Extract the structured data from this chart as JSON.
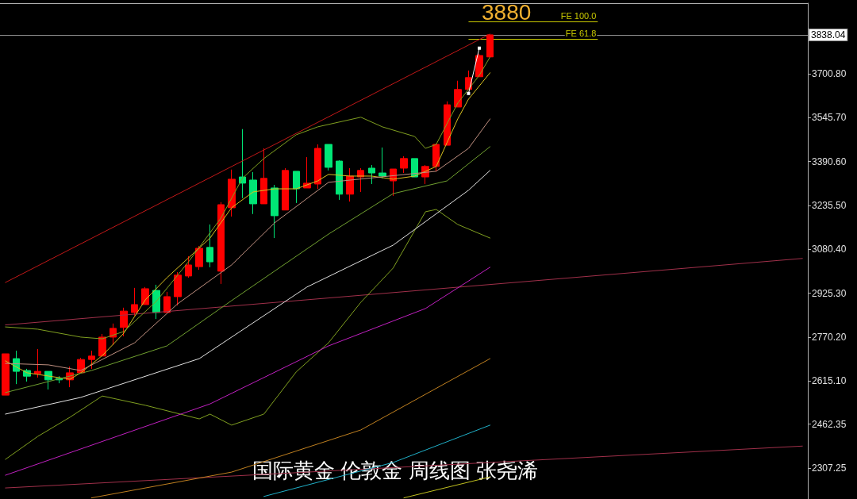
{
  "chart_data": {
    "type": "candlestick",
    "title": "国际黄金 伦敦金 周线图 张尧浠",
    "annotations": [
      "3880"
    ],
    "categories": [
      null,
      null,
      null,
      null,
      null,
      null,
      null,
      null,
      null,
      null,
      null,
      null,
      null,
      null,
      null,
      null,
      null,
      null,
      null,
      null,
      null,
      null,
      null,
      null,
      null,
      null,
      null,
      null,
      null,
      null,
      null,
      null,
      null,
      null,
      null,
      null,
      null,
      null,
      null,
      null,
      null,
      null,
      null,
      null,
      null,
      null,
      null,
      null,
      null,
      null,
      null,
      null,
      null,
      null,
      null,
      null,
      null,
      null,
      null,
      null,
      null,
      null,
      null,
      null,
      null,
      null,
      null,
      null,
      null,
      null,
      null,
      null,
      null,
      null,
      null
    ],
    "ohlc": [
      [
        2565,
        2711,
        2565,
        2711
      ],
      [
        2694,
        2722,
        2604,
        2649
      ],
      [
        2652,
        2658,
        2613,
        2632
      ],
      [
        2641,
        2728,
        2627,
        2649
      ],
      [
        2649,
        2649,
        2585,
        2619
      ],
      [
        2624,
        2632,
        2607,
        2619
      ],
      [
        2619,
        2666,
        2593,
        2644
      ],
      [
        2644,
        2697,
        2644,
        2691
      ],
      [
        2691,
        2722,
        2658,
        2703
      ],
      [
        2703,
        2781,
        2703,
        2770
      ],
      [
        2770,
        2818,
        2742,
        2801
      ],
      [
        2804,
        2874,
        2773,
        2862
      ],
      [
        2857,
        2944,
        2846,
        2885
      ],
      [
        2885,
        2947,
        2885,
        2941
      ],
      [
        2935,
        2955,
        2834,
        2857
      ],
      [
        2857,
        2930,
        2857,
        2913
      ],
      [
        2913,
        3000,
        2882,
        2989
      ],
      [
        2986,
        3056,
        2980,
        3025
      ],
      [
        3019,
        3092,
        3008,
        3084
      ],
      [
        3087,
        3168,
        3017,
        3036
      ],
      [
        3003,
        3247,
        2958,
        3238
      ],
      [
        3227,
        3362,
        3196,
        3328
      ],
      [
        3336,
        3505,
        3261,
        3314
      ],
      [
        3325,
        3353,
        3205,
        3241
      ],
      [
        3241,
        3437,
        3241,
        3331
      ],
      [
        3297,
        3308,
        3120,
        3199
      ],
      [
        3219,
        3367,
        3219,
        3359
      ],
      [
        3356,
        3356,
        3244,
        3294
      ],
      [
        3297,
        3406,
        3297,
        3314
      ],
      [
        3311,
        3451,
        3294,
        3437
      ],
      [
        3451,
        3451,
        3359,
        3370
      ],
      [
        3392,
        3395,
        3255,
        3275
      ],
      [
        3275,
        3367,
        3249,
        3339
      ],
      [
        3336,
        3367,
        3283,
        3359
      ],
      [
        3367,
        3378,
        3311,
        3350
      ],
      [
        3350,
        3440,
        3331,
        3339
      ],
      [
        3322,
        3364,
        3269,
        3364
      ],
      [
        3367,
        3409,
        3350,
        3401
      ],
      [
        3401,
        3401,
        3336,
        3336
      ],
      [
        3336,
        3378,
        3311,
        3373
      ],
      [
        3373,
        3454,
        3356,
        3451
      ],
      [
        3448,
        3603,
        3448,
        3591
      ],
      [
        3583,
        3676,
        3583,
        3645
      ],
      [
        3645,
        3712,
        3645,
        3687
      ],
      [
        3690,
        3771,
        3690,
        3765
      ],
      [
        3760,
        3838.04,
        3760,
        3838.04
      ],
      null,
      null,
      null,
      null,
      null,
      null,
      null,
      null,
      null,
      null,
      null,
      null,
      null,
      null,
      null,
      null,
      null,
      null,
      null,
      null,
      null,
      null,
      null,
      null,
      null,
      null,
      null,
      null,
      null
    ],
    "colors": [
      "#ff0000",
      "#00e676",
      "#00e676",
      "#ff0000",
      "#00e676",
      "#00e676",
      "#ff0000",
      "#ff0000",
      "#ff0000",
      "#ff0000",
      "#ff0000",
      "#ff0000",
      "#ff0000",
      "#ff0000",
      "#00e676",
      "#ff0000",
      "#ff0000",
      "#ff0000",
      "#ff0000",
      "#00e676",
      "#ff0000",
      "#ff0000",
      "#00e676",
      "#00e676",
      "#ff0000",
      "#00e676",
      "#ff0000",
      "#00e676",
      "#ff0000",
      "#ff0000",
      "#00e676",
      "#00e676",
      "#ff0000",
      "#ff0000",
      "#00e676",
      "#00e676",
      "#ff0000",
      "#ff0000",
      "#00e676",
      "#ff0000",
      "#ff0000",
      "#ff0000",
      "#ff0000",
      "#ff0000",
      "#ff0000",
      "#ff0000",
      null,
      null,
      null,
      null,
      null,
      null,
      null,
      null,
      null,
      null,
      null,
      null,
      null,
      null,
      null,
      null,
      null,
      null,
      null,
      null,
      null,
      null,
      null,
      null,
      null,
      null,
      null,
      null,
      null
    ],
    "series": [
      {
        "type": "line",
        "color": "#c01818",
        "values": [
          2963,
          null,
          null,
          null,
          null,
          null,
          null,
          null,
          null,
          null,
          null,
          null,
          null,
          null,
          null,
          null,
          null,
          null,
          null,
          null,
          null,
          null,
          null,
          null,
          null,
          null,
          null,
          null,
          null,
          null,
          null,
          null,
          null,
          null,
          null,
          null,
          null,
          null,
          null,
          null,
          null,
          null,
          null,
          null,
          null,
          3841,
          null,
          null,
          null,
          null,
          null,
          null,
          null,
          null,
          null,
          null,
          null,
          null,
          null,
          null,
          null,
          null,
          null,
          null,
          null,
          null,
          null,
          null,
          null,
          null,
          null,
          null,
          null,
          null,
          null
        ]
      },
      {
        "type": "line",
        "color": "#a0304a",
        "values": [
          2813,
          null,
          null,
          null,
          null,
          null,
          null,
          null,
          null,
          null,
          null,
          null,
          null,
          null,
          null,
          null,
          null,
          null,
          null,
          null,
          null,
          null,
          null,
          null,
          null,
          null,
          null,
          null,
          null,
          null,
          null,
          null,
          null,
          null,
          null,
          null,
          null,
          null,
          null,
          null,
          null,
          null,
          null,
          null,
          null,
          null,
          null,
          null,
          null,
          null,
          null,
          null,
          null,
          null,
          null,
          null,
          null,
          null,
          null,
          null,
          null,
          null,
          null,
          null,
          null,
          null,
          null,
          null,
          null,
          null,
          null,
          null,
          null,
          null,
          3048
        ]
      },
      {
        "type": "line",
        "color": "#a0304a",
        "values": [
          2237,
          null,
          null,
          null,
          null,
          null,
          null,
          null,
          null,
          null,
          null,
          null,
          null,
          null,
          null,
          null,
          null,
          null,
          null,
          null,
          null,
          null,
          null,
          null,
          null,
          null,
          null,
          null,
          null,
          null,
          null,
          null,
          null,
          null,
          null,
          null,
          null,
          null,
          null,
          null,
          null,
          null,
          null,
          null,
          null,
          null,
          null,
          null,
          null,
          null,
          null,
          null,
          null,
          null,
          null,
          null,
          null,
          null,
          null,
          null,
          null,
          null,
          null,
          null,
          null,
          null,
          null,
          null,
          null,
          null,
          null,
          null,
          null,
          null,
          2385
        ]
      },
      {
        "type": "line",
        "color": "#d8c020",
        "values": [
          2686,
          null,
          2644,
          null,
          null,
          null,
          2621,
          2644,
          null,
          2705,
          null,
          2784,
          null,
          2902,
          null,
          2980,
          null,
          3050,
          null,
          3120,
          null,
          3227,
          null,
          3283,
          null,
          3294,
          null,
          3294,
          null,
          3322,
          3345,
          null,
          3339,
          null,
          3339,
          null,
          3328,
          null,
          3339,
          null,
          3373,
          3457,
          3541,
          3611,
          null,
          3704,
          null,
          null,
          null,
          null,
          null,
          null,
          null,
          null,
          null,
          null,
          null,
          null,
          null,
          null,
          null,
          null,
          null,
          null,
          null,
          null,
          null,
          null,
          null,
          null,
          null,
          null,
          null,
          null,
          null
        ]
      },
      {
        "type": "line",
        "color": "#80a020",
        "values": [
          2806,
          null,
          null,
          2798,
          null,
          null,
          null,
          2770,
          null,
          2764,
          null,
          2790,
          null,
          null,
          2896,
          null,
          null,
          3036,
          null,
          null,
          3190,
          null,
          3331,
          null,
          3401,
          null,
          null,
          3485,
          null,
          3513,
          null,
          null,
          null,
          3547,
          null,
          3513,
          null,
          null,
          3479,
          3437,
          3451,
          null,
          3597,
          null,
          3695,
          3760,
          null,
          null,
          null,
          null,
          null,
          null,
          null,
          null,
          null,
          null,
          null,
          null,
          null,
          null,
          null,
          null,
          null,
          null,
          null,
          null,
          null,
          null,
          null,
          null,
          null,
          null,
          null,
          null,
          null
        ]
      },
      {
        "type": "line",
        "color": "#80a020",
        "values": [
          2338,
          null,
          null,
          2419,
          null,
          null,
          2487,
          null,
          null,
          2562,
          null,
          null,
          null,
          2529,
          null,
          null,
          null,
          null,
          2481,
          2498,
          null,
          2459,
          null,
          null,
          2498,
          null,
          null,
          2647,
          null,
          null,
          2750,
          null,
          null,
          2893,
          null,
          null,
          3014,
          null,
          null,
          3213,
          3221,
          null,
          3168,
          null,
          null,
          3120,
          null,
          null,
          null,
          null,
          null,
          null,
          null,
          null,
          null,
          null,
          null,
          null,
          null,
          null,
          null,
          null,
          null,
          null,
          null,
          null,
          null,
          null,
          null,
          null,
          null,
          null,
          null,
          null,
          null
        ]
      },
      {
        "type": "line",
        "color": "#70a030",
        "values": [
          2574,
          null,
          null,
          null,
          2613,
          null,
          null,
          null,
          2652,
          null,
          null,
          null,
          null,
          null,
          null,
          2739,
          null,
          null,
          null,
          null,
          null,
          2899,
          null,
          null,
          null,
          null,
          null,
          null,
          null,
          null,
          3134,
          null,
          null,
          null,
          null,
          null,
          3277,
          null,
          null,
          null,
          null,
          3322,
          null,
          null,
          null,
          3443,
          null,
          null,
          null,
          null,
          null,
          null,
          null,
          null,
          null,
          null,
          null,
          null,
          null,
          null,
          null,
          null,
          null,
          null,
          null,
          null,
          null,
          null,
          null,
          null,
          null,
          null,
          null,
          null,
          null
        ]
      },
      {
        "type": "line",
        "color": "#c09080",
        "values": [
          2677,
          null,
          null,
          null,
          2672,
          null,
          null,
          2652,
          null,
          null,
          null,
          null,
          2750,
          null,
          null,
          null,
          2888,
          null,
          null,
          null,
          null,
          3025,
          null,
          null,
          null,
          3174,
          null,
          null,
          null,
          null,
          3317,
          null,
          null,
          null,
          null,
          null,
          null,
          null,
          null,
          null,
          3356,
          null,
          null,
          3437,
          null,
          3541,
          null,
          null,
          null,
          null,
          null,
          null,
          null,
          null,
          null,
          null,
          null,
          null,
          null,
          null,
          null,
          null,
          null,
          null,
          null,
          null,
          null,
          null,
          null,
          null,
          null,
          null,
          null,
          null,
          null
        ]
      },
      {
        "type": "line",
        "color": "#e0e0e0",
        "values": [
          2498,
          null,
          null,
          null,
          null,
          null,
          null,
          2557,
          null,
          null,
          null,
          null,
          null,
          null,
          null,
          null,
          null,
          null,
          2694,
          null,
          null,
          null,
          null,
          null,
          null,
          null,
          null,
          null,
          2947,
          null,
          null,
          null,
          null,
          null,
          null,
          null,
          3095,
          null,
          null,
          null,
          null,
          null,
          null,
          3289,
          null,
          3359,
          null,
          null,
          null,
          null,
          null,
          null,
          null,
          null,
          null,
          null,
          null,
          null,
          null,
          null,
          null,
          null,
          null,
          null,
          null,
          null,
          null,
          null,
          null,
          null,
          null,
          null,
          null,
          null,
          null
        ]
      },
      {
        "type": "line",
        "color": "#c020c0",
        "values": [
          2282,
          null,
          null,
          null,
          null,
          null,
          null,
          null,
          null,
          null,
          null,
          null,
          null,
          null,
          null,
          null,
          null,
          null,
          null,
          2534,
          null,
          null,
          null,
          null,
          null,
          null,
          null,
          null,
          null,
          null,
          2739,
          null,
          null,
          null,
          null,
          null,
          null,
          null,
          null,
          2871,
          null,
          null,
          null,
          null,
          null,
          3017,
          null,
          null,
          null,
          null,
          null,
          null,
          null,
          null,
          null,
          null,
          null,
          null,
          null,
          null,
          null,
          null,
          null,
          null,
          null,
          null,
          null,
          null,
          null,
          null,
          null,
          null,
          null,
          null,
          null
        ]
      },
      {
        "type": "line",
        "color": "#c08020",
        "values": [
          null,
          null,
          null,
          null,
          null,
          null,
          null,
          null,
          2202,
          null,
          null,
          null,
          null,
          null,
          null,
          null,
          null,
          null,
          null,
          null,
          null,
          2293,
          null,
          null,
          null,
          null,
          null,
          null,
          null,
          null,
          null,
          null,
          null,
          2442,
          null,
          null,
          null,
          null,
          null,
          null,
          null,
          null,
          null,
          null,
          null,
          2694,
          null,
          null,
          null,
          null,
          null,
          null,
          null,
          null,
          null,
          null,
          null,
          null,
          null,
          null,
          null,
          null,
          null,
          null,
          null,
          null,
          null,
          null,
          null,
          null,
          null,
          null,
          null,
          null,
          null
        ]
      },
      {
        "type": "line",
        "color": "#20b0c8",
        "values": [
          null,
          null,
          null,
          null,
          null,
          null,
          null,
          null,
          null,
          null,
          null,
          null,
          null,
          null,
          null,
          null,
          null,
          null,
          null,
          null,
          null,
          null,
          null,
          null,
          2207,
          null,
          null,
          null,
          null,
          null,
          null,
          null,
          null,
          null,
          null,
          null,
          2327,
          null,
          null,
          null,
          null,
          null,
          null,
          null,
          null,
          2459,
          null,
          null,
          null,
          null,
          null,
          null,
          null,
          null,
          null,
          null,
          null,
          null,
          null,
          null,
          null,
          null,
          null,
          null,
          null,
          null,
          null,
          null,
          null,
          null,
          null,
          null,
          null,
          null,
          null
        ]
      },
      {
        "type": "line",
        "color": "#c0c020",
        "values": [
          null,
          null,
          null,
          null,
          null,
          null,
          null,
          null,
          null,
          null,
          null,
          null,
          null,
          null,
          null,
          null,
          null,
          null,
          null,
          null,
          null,
          null,
          null,
          null,
          null,
          null,
          null,
          null,
          null,
          null,
          null,
          null,
          null,
          null,
          null,
          null,
          null,
          2202,
          null,
          null,
          null,
          null,
          null,
          null,
          null,
          2276,
          null,
          null,
          null,
          null,
          null,
          null,
          null,
          null,
          null,
          null,
          null,
          null,
          null,
          null,
          null,
          null,
          null,
          null,
          null,
          null,
          null,
          null,
          null,
          null,
          null,
          null,
          null,
          null,
          null
        ]
      },
      {
        "type": "line",
        "color": "#ffffff",
        "marker": "square",
        "values": [
          null,
          null,
          null,
          null,
          null,
          null,
          null,
          null,
          null,
          null,
          null,
          null,
          null,
          null,
          null,
          null,
          null,
          null,
          null,
          null,
          null,
          null,
          null,
          null,
          null,
          null,
          null,
          null,
          null,
          null,
          null,
          null,
          null,
          null,
          null,
          null,
          null,
          null,
          null,
          null,
          null,
          null,
          null,
          3631,
          3791,
          null,
          null,
          null,
          null,
          null,
          null,
          null,
          null,
          null,
          null,
          null,
          null,
          null,
          null,
          null,
          null,
          null,
          null,
          null,
          null,
          null,
          null,
          null,
          null,
          null,
          null,
          null,
          null,
          null,
          null
        ]
      }
    ],
    "ref_lines": [
      {
        "axis": "y",
        "value": 3838.04,
        "label": "3838.04",
        "color": "#909090"
      },
      {
        "axis": "y",
        "value": 3886,
        "label": "FE 100.0",
        "color": "#c8c800"
      },
      {
        "axis": "y",
        "value": 3824,
        "label": "FE 61.8",
        "color": "#c8c800"
      }
    ],
    "ylim": [
      2198,
      3950
    ],
    "yticks": [
      {
        "value": 3855,
        "label": null
      },
      {
        "value": 3700.8,
        "label": "3700.80"
      },
      {
        "value": 3545.7,
        "label": "3545.70"
      },
      {
        "value": 3390.6,
        "label": "3390.60"
      },
      {
        "value": 3235.5,
        "label": "3235.50"
      },
      {
        "value": 3080.4,
        "label": "3080.40"
      },
      {
        "value": 2925.3,
        "label": "2925.30"
      },
      {
        "value": 2770.2,
        "label": "2770.20"
      },
      {
        "value": 2615.1,
        "label": "2615.10"
      },
      {
        "value": 2462.35,
        "label": "2462.35"
      },
      {
        "value": 2307.25,
        "label": "2307.25"
      }
    ],
    "tick_labels": "y",
    "grid": false,
    "marker": "none",
    "line_style": "solid"
  }
}
